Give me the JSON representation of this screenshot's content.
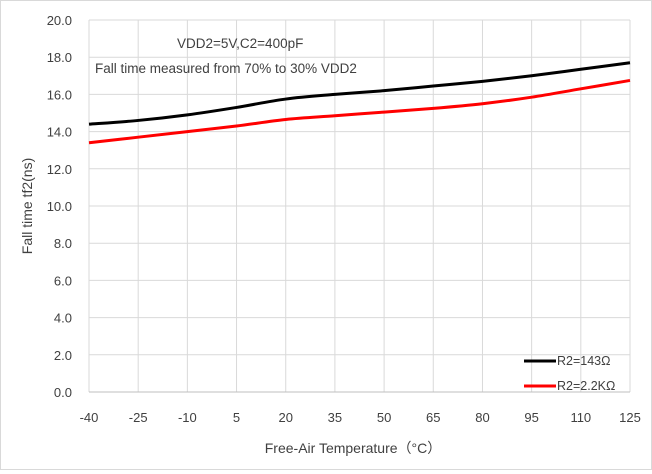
{
  "chart_data": {
    "type": "line",
    "title": "",
    "xlabel": "Free-Air Temperature（°C）",
    "ylabel": "Fall time tf2(ns)",
    "categories": [
      "-40",
      "-25",
      "-10",
      "5",
      "20",
      "35",
      "50",
      "65",
      "80",
      "95",
      "110",
      "125"
    ],
    "x": [
      -40,
      -25,
      -10,
      5,
      20,
      35,
      50,
      65,
      80,
      95,
      110,
      125
    ],
    "ylim": [
      0,
      20
    ],
    "yticks": [
      "0.0",
      "2.0",
      "4.0",
      "6.0",
      "8.0",
      "10.0",
      "12.0",
      "14.0",
      "16.0",
      "18.0",
      "20.0"
    ],
    "grid": "on",
    "legend_position": "bottom-right",
    "annotations": [
      "VDD2=5V,C2=400pF",
      "Fall time measured from 70% to 30% VDD2"
    ],
    "series": [
      {
        "name": "R2=143Ω",
        "color": "#000000",
        "values": [
          14.4,
          14.6,
          14.9,
          15.3,
          15.75,
          16.0,
          16.2,
          16.45,
          16.7,
          17.0,
          17.35,
          17.7
        ]
      },
      {
        "name": "R2=2.2KΩ",
        "color": "#ff0000",
        "values": [
          13.4,
          13.7,
          14.0,
          14.3,
          14.65,
          14.85,
          15.05,
          15.25,
          15.5,
          15.85,
          16.3,
          16.75
        ]
      }
    ]
  }
}
